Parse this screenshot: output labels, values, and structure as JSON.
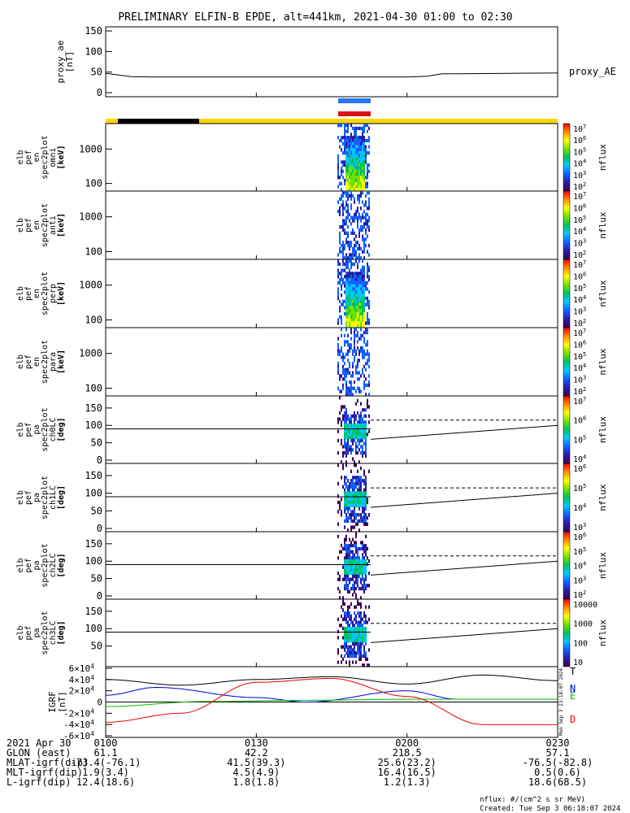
{
  "title": "PRELIMINARY ELFIN-B EPDE, alt=441km, 2021-04-30 01:00 to 02:30",
  "chart_data": [
    {
      "type": "line",
      "panel": "proxy_ae",
      "ylabel": [
        "proxy_ae",
        "[nT]"
      ],
      "yticks": [
        "0",
        "50",
        "100",
        "150"
      ],
      "ylim": [
        0,
        160
      ],
      "series": [
        {
          "name": "proxy_AE",
          "x_min": [
            0,
            2,
            5,
            10,
            20,
            40,
            60,
            64,
            67,
            70,
            80,
            90
          ],
          "values": [
            47,
            44,
            39,
            38,
            38,
            38,
            38,
            40,
            46,
            46,
            47,
            48
          ]
        }
      ]
    },
    {
      "type": "heatmap",
      "panel": "en_spec2plot_omni",
      "ylabel": [
        "elb",
        "pef",
        "en",
        "spec2plot",
        "omni",
        "[keV]"
      ],
      "yticks": [
        "100",
        "1000"
      ],
      "y_scale": "log",
      "zlabel": "nflux",
      "zticks": [
        "10^2",
        "10^3",
        "10^4",
        "10^5",
        "10^6",
        "10^7"
      ]
    },
    {
      "type": "heatmap",
      "panel": "en_spec2plot_anti",
      "ylabel": [
        "elb",
        "pef",
        "en",
        "spec2plot",
        "anti",
        "[keV]"
      ],
      "yticks": [
        "100",
        "1000"
      ],
      "y_scale": "log",
      "zlabel": "nflux",
      "zticks": [
        "10^2",
        "10^3",
        "10^4",
        "10^5",
        "10^6",
        "10^7"
      ]
    },
    {
      "type": "heatmap",
      "panel": "en_spec2plot_perp",
      "ylabel": [
        "elb",
        "pef",
        "en",
        "spec2plot",
        "perp",
        "[keV]"
      ],
      "yticks": [
        "100",
        "1000"
      ],
      "y_scale": "log",
      "zlabel": "nflux",
      "zticks": [
        "10^2",
        "10^3",
        "10^4",
        "10^5",
        "10^6",
        "10^7"
      ]
    },
    {
      "type": "heatmap",
      "panel": "en_spec2plot_para",
      "ylabel": [
        "elb",
        "pef",
        "en",
        "spec2plot",
        "para",
        "[keV]"
      ],
      "yticks": [
        "100",
        "1000"
      ],
      "y_scale": "log",
      "zlabel": "nflux",
      "zticks": [
        "10^2",
        "10^3",
        "10^4",
        "10^5",
        "10^6",
        "10^7"
      ]
    },
    {
      "type": "heatmap",
      "panel": "pa_spec2plot_ch0LC",
      "ylabel": [
        "elb",
        "pef",
        "pa",
        "spec2plot",
        "ch0LC",
        "[deg]"
      ],
      "yticks": [
        "0",
        "50",
        "100",
        "150"
      ],
      "zlabel": "nflux",
      "zticks": [
        "10^4",
        "10^5",
        "10^6",
        "10^7"
      ]
    },
    {
      "type": "heatmap",
      "panel": "pa_spec2plot_ch1LC",
      "ylabel": [
        "elb",
        "pef",
        "pa",
        "spec2plot",
        "ch1LC",
        "[deg]"
      ],
      "yticks": [
        "0",
        "50",
        "100",
        "150"
      ],
      "zlabel": "nflux",
      "zticks": [
        "10^3",
        "10^4",
        "10^5",
        "10^6"
      ]
    },
    {
      "type": "heatmap",
      "panel": "pa_spec2plot_ch2LC",
      "ylabel": [
        "elb",
        "pef",
        "pa",
        "spec2plot",
        "ch2LC",
        "[deg]"
      ],
      "yticks": [
        "0",
        "50",
        "100",
        "150"
      ],
      "zlabel": "nflux",
      "zticks": [
        "10^2",
        "10^3",
        "10^4",
        "10^5",
        "10^6"
      ]
    },
    {
      "type": "heatmap",
      "panel": "pa_spec2plot_ch3LC",
      "ylabel": [
        "elb",
        "pef",
        "pa",
        "spec2plot",
        "ch3LC",
        "[deg]"
      ],
      "yticks": [
        "50",
        "100",
        "150"
      ],
      "zlabel": "nflux",
      "zticks": [
        "10",
        "100",
        "1000",
        "10000"
      ]
    },
    {
      "type": "line",
      "panel": "IGRF",
      "ylabel": [
        "IGRF",
        "[nT]"
      ],
      "yticks": [
        "-6x10^4",
        "-4x10^4",
        "-2x10^4",
        "0",
        "2x10^4",
        "4x10^4",
        "6x10^4"
      ],
      "ylim": [
        -60000,
        60000
      ],
      "series": [
        {
          "name": "T",
          "color": "#000000",
          "x_min": [
            0,
            15,
            30,
            45,
            60,
            75,
            90
          ],
          "values": [
            40000,
            30000,
            40000,
            45000,
            32000,
            48000,
            38000
          ]
        },
        {
          "name": "N",
          "color": "#0000dd",
          "x_min": [
            0,
            10,
            30,
            40,
            60,
            70,
            90
          ],
          "values": [
            12000,
            26000,
            8000,
            0,
            20000,
            5000,
            5000
          ]
        },
        {
          "name": "E",
          "color": "#00bb00",
          "x_min": [
            0,
            20,
            40,
            60,
            90
          ],
          "values": [
            -8000,
            1000,
            3000,
            5000,
            5000
          ]
        },
        {
          "name": "D",
          "color": "#ee0000",
          "x_min": [
            0,
            15,
            30,
            45,
            60,
            75,
            90
          ],
          "values": [
            -36000,
            -20000,
            35000,
            42000,
            10000,
            -40000,
            -40000
          ]
        }
      ],
      "side_note": "Mon Sep 3 23:18:07 2024"
    }
  ],
  "xaxis": {
    "tick_labels": [
      "0100",
      "0130",
      "0200",
      "0230"
    ],
    "tick_minutes": [
      0,
      30,
      60,
      90
    ],
    "rows": [
      {
        "label": "2021 Apr 30",
        "values": [
          "0100",
          "0130",
          "0200",
          "0230"
        ]
      },
      {
        "label": "GLON (east)",
        "values": [
          "61.1",
          "42.2",
          "218.5",
          "57.1"
        ]
      },
      {
        "label": "MLAT-igrf(dip)",
        "values": [
          "-73.4(-76.1)",
          "41.5(39.3)",
          "25.6(23.2)",
          "-76.5(-82.8)"
        ]
      },
      {
        "label": "MLT-igrf(dip)",
        "values": [
          "1.9(3.4)",
          "4.5(4.9)",
          "16.4(16.5)",
          "0.5(0.6)"
        ]
      },
      {
        "label": "L-igrf(dip)",
        "values": [
          "12.4(18.6)",
          "1.8(1.8)",
          "1.2(1.3)",
          "18.6(68.5)"
        ]
      }
    ]
  },
  "footer": {
    "units": "nflux: #/(cm^2 s sr MeV)",
    "created": "Created: Tue Sep  3 06:18:07 2024"
  },
  "colors": {
    "sci_zone": "#2277ee",
    "sci_zone_2": "#dd1111",
    "orbit_day": "#ffd700",
    "orbit_night": "#000000"
  }
}
